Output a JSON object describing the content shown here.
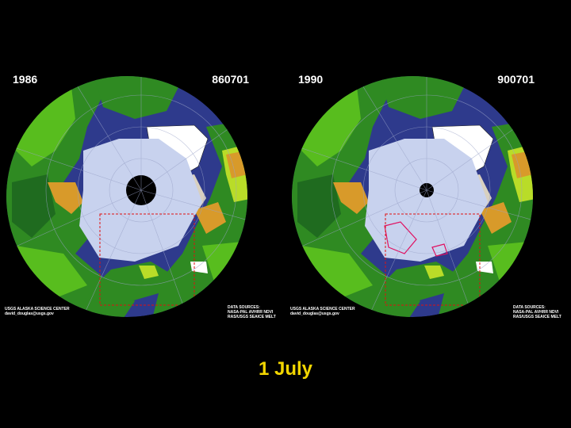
{
  "panels": [
    {
      "year": "1986",
      "date_code": "860701",
      "credit_line1": "USGS ALASKA SCIENCE CENTER",
      "credit_line2": "david_douglas@usgs.gov",
      "sources_line1": "DATA SOURCES:",
      "sources_line2": "NASA-PAL AVHRR NDVI",
      "sources_line3": "RAS/USGS SEAICE MELT",
      "pole_hole": "large"
    },
    {
      "year": "1990",
      "date_code": "900701",
      "credit_line1": "USGS ALASKA SCIENCE CENTER",
      "credit_line2": "david_douglas@usgs.gov",
      "sources_line1": "DATA SOURCES:",
      "sources_line2": "NASA-PAL AVHRR NDVI",
      "sources_line3": "RAS/USGS SEAICE MELT",
      "pole_hole": "small"
    }
  ],
  "caption": "1 July",
  "colors": {
    "background": "#000000",
    "ocean": "#2e3a8c",
    "sea_ice": "#c8d2ee",
    "vegetation_dark": "#1f6b1f",
    "vegetation_bright": "#5ec41e",
    "vegetation_lime": "#b9dc28",
    "tundra": "#d89a2a",
    "glacier": "#ffffff",
    "study_box": "#e01010",
    "caption": "#f2d600"
  }
}
